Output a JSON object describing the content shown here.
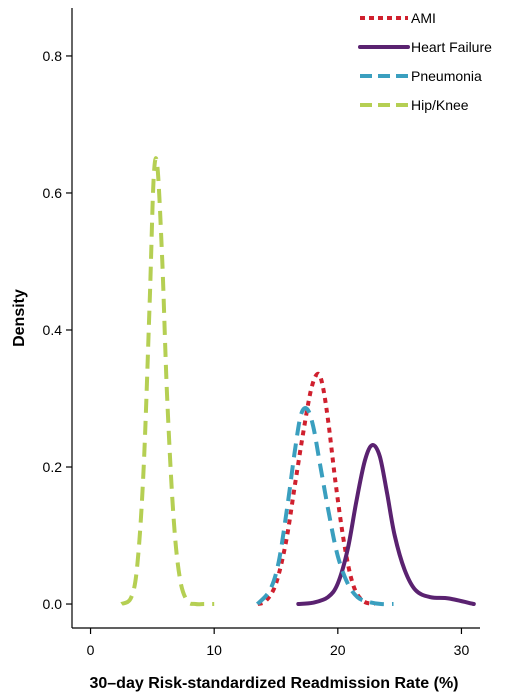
{
  "chart_data": {
    "type": "line",
    "title": "",
    "xlabel": "30–day Risk-standardized Readmission Rate (%)",
    "ylabel": "Density",
    "xlim": [
      -1.5,
      31.5
    ],
    "ylim": [
      -0.035,
      0.87
    ],
    "xticks": [
      0,
      10,
      20,
      30
    ],
    "xtick_labels": [
      "0",
      "10",
      "20",
      "30"
    ],
    "yticks": [
      0.0,
      0.2,
      0.4,
      0.6,
      0.8
    ],
    "ytick_labels": [
      "0.0",
      "0.2",
      "0.4",
      "0.6",
      "0.8"
    ],
    "grid": false,
    "legend": "top-right",
    "series": [
      {
        "name": "AMI",
        "color": "#d0202e",
        "style": "dotted",
        "x": [
          13.5,
          14.2,
          15.0,
          15.8,
          16.5,
          17.2,
          17.8,
          18.3,
          18.7,
          19.2,
          19.8,
          20.5,
          21.2,
          22.0,
          23.0
        ],
        "y": [
          0.0,
          0.005,
          0.03,
          0.09,
          0.17,
          0.25,
          0.31,
          0.335,
          0.325,
          0.27,
          0.18,
          0.09,
          0.03,
          0.005,
          0.0
        ]
      },
      {
        "name": "Heart Failure",
        "color": "#5a2270",
        "style": "solid",
        "x": [
          16.8,
          18.0,
          19.2,
          20.0,
          20.8,
          21.5,
          22.2,
          22.8,
          23.4,
          24.0,
          24.6,
          25.4,
          26.3,
          27.5,
          29.0,
          31.0
        ],
        "y": [
          0.0,
          0.002,
          0.01,
          0.03,
          0.08,
          0.15,
          0.21,
          0.232,
          0.215,
          0.16,
          0.1,
          0.05,
          0.02,
          0.01,
          0.008,
          0.0
        ]
      },
      {
        "name": "Pneumonia",
        "color": "#3a9fbf",
        "style": "dashed",
        "x": [
          13.5,
          14.5,
          15.2,
          15.9,
          16.5,
          17.0,
          17.5,
          18.0,
          18.6,
          19.3,
          20.0,
          20.8,
          21.6,
          22.5,
          23.5,
          24.5
        ],
        "y": [
          0.0,
          0.02,
          0.06,
          0.14,
          0.22,
          0.275,
          0.285,
          0.26,
          0.2,
          0.13,
          0.07,
          0.03,
          0.01,
          0.003,
          0.0,
          0.0
        ]
      },
      {
        "name": "Hip/Knee",
        "color": "#b5cf53",
        "style": "dashed",
        "x": [
          2.5,
          3.3,
          3.8,
          4.3,
          4.8,
          5.1,
          5.4,
          5.8,
          6.2,
          6.7,
          7.2,
          7.8,
          8.5,
          9.2,
          10.0
        ],
        "y": [
          0.0,
          0.01,
          0.06,
          0.2,
          0.45,
          0.62,
          0.64,
          0.5,
          0.3,
          0.13,
          0.04,
          0.005,
          0.0,
          0.0,
          0.0
        ]
      }
    ]
  }
}
